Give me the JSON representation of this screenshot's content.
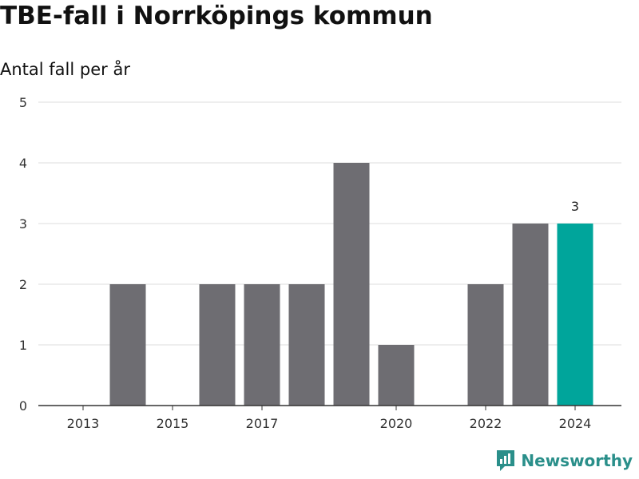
{
  "title": "TBE-fall i Norrköpings kommun",
  "subtitle": "Antal fall per år",
  "brand": {
    "name": "Newsworthy",
    "icon": "newsworthy-logo-icon"
  },
  "colors": {
    "bar": "#6e6d72",
    "highlight": "#00a59b",
    "grid": "#dddddd",
    "axis": "#333333"
  },
  "chart_data": {
    "type": "bar",
    "title": "TBE-fall i Norrköpings kommun",
    "subtitle": "Antal fall per år",
    "x": [
      2013,
      2014,
      2015,
      2016,
      2017,
      2018,
      2019,
      2020,
      2021,
      2022,
      2023,
      2024
    ],
    "values": [
      0,
      2,
      0,
      2,
      2,
      2,
      4,
      1,
      0,
      2,
      3,
      3
    ],
    "highlight_index": 11,
    "x_tick_labels": [
      "2013",
      "2015",
      "2017",
      "2020",
      "2022",
      "2024"
    ],
    "y_ticks": [
      0,
      1,
      2,
      3,
      4,
      5
    ],
    "ylim": [
      0,
      5
    ],
    "data_labels": [
      {
        "index": 11,
        "text": "3"
      }
    ],
    "grid": true
  }
}
